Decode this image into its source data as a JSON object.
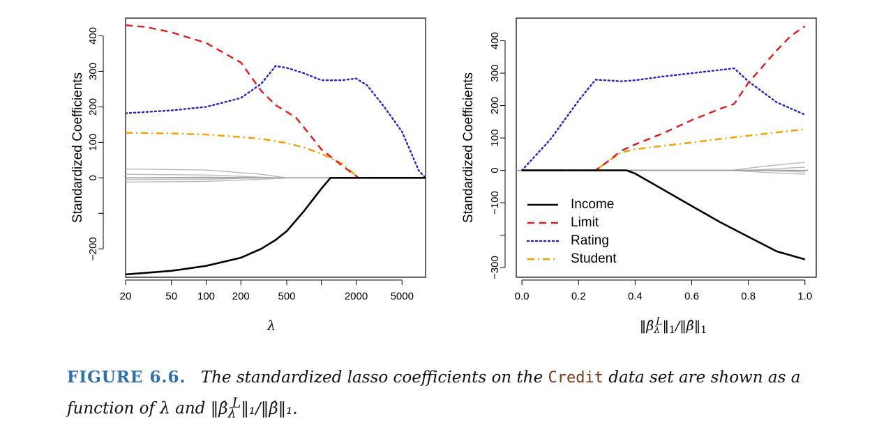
{
  "figure_caption": {
    "label": "FIGURE 6.6.",
    "part1": "The standardized lasso coefficients on the",
    "code": "Credit",
    "part2": "data set are shown as a function of",
    "math1": "λ",
    "part3": "and",
    "math2": "‖β̂",
    "math2_sub": "λ",
    "math2_sup": "L",
    "math2_rest": "‖₁/‖β̂‖₁."
  },
  "chart_data": [
    {
      "type": "line",
      "xscale": "log",
      "xlabel": "λ",
      "ylabel": "Standardized Coefficients",
      "x_ticks": [
        20,
        50,
        100,
        200,
        500,
        2000,
        5000
      ],
      "x_tick_labels": [
        "20",
        "50",
        "100",
        "200",
        "500",
        "2000",
        "5000"
      ],
      "y_ticks": [
        -200,
        -100,
        0,
        100,
        200,
        300,
        400
      ],
      "y_tick_labels": [
        "−200",
        "",
        "0",
        "100",
        "200",
        "300",
        "400"
      ],
      "xlim": [
        20,
        8000
      ],
      "ylim": [
        -280,
        450
      ],
      "series": [
        {
          "name": "Income",
          "color": "#000000",
          "dash": "solid",
          "x": [
            20,
            50,
            100,
            200,
            300,
            400,
            500,
            700,
            1000,
            1200,
            8000
          ],
          "y": [
            -272,
            -262,
            -248,
            -225,
            -200,
            -175,
            -150,
            -95,
            -30,
            0,
            0
          ]
        },
        {
          "name": "Limit",
          "color": "#e31a1c",
          "dash": "dashed",
          "x": [
            20,
            30,
            50,
            100,
            200,
            300,
            400,
            600,
            800,
            1000,
            1500,
            2100,
            8000
          ],
          "y": [
            430,
            425,
            410,
            380,
            325,
            245,
            205,
            170,
            120,
            80,
            35,
            0,
            0
          ]
        },
        {
          "name": "Rating",
          "color": "#1f1fd0",
          "dash": "dotted",
          "x": [
            20,
            50,
            100,
            200,
            300,
            400,
            500,
            700,
            1000,
            1500,
            2000,
            2500,
            3500,
            5000,
            7000,
            8000
          ],
          "y": [
            182,
            190,
            200,
            225,
            265,
            315,
            310,
            295,
            275,
            275,
            280,
            260,
            200,
            130,
            20,
            0
          ]
        },
        {
          "name": "Student",
          "color": "#f0a000",
          "dash": "dashdot",
          "x": [
            20,
            50,
            100,
            200,
            300,
            500,
            700,
            1000,
            1500,
            2100,
            8000
          ],
          "y": [
            127,
            125,
            122,
            115,
            110,
            98,
            86,
            68,
            40,
            0,
            0
          ]
        }
      ],
      "gray_series": [
        {
          "x": [
            20,
            100,
            300,
            500,
            8000
          ],
          "y": [
            25,
            22,
            10,
            0,
            0
          ]
        },
        {
          "x": [
            20,
            100,
            300,
            400,
            8000
          ],
          "y": [
            10,
            8,
            2,
            0,
            0
          ]
        },
        {
          "x": [
            20,
            100,
            300,
            8000
          ],
          "y": [
            -5,
            -4,
            0,
            0
          ]
        },
        {
          "x": [
            20,
            100,
            300,
            500,
            8000
          ],
          "y": [
            -12,
            -10,
            -4,
            0,
            0
          ]
        },
        {
          "x": [
            20,
            100,
            400,
            8000
          ],
          "y": [
            0,
            2,
            0,
            0
          ]
        }
      ]
    },
    {
      "type": "line",
      "xlabel": "‖β̂λL‖1/‖β̂‖1",
      "ylabel": "Standardized Coefficients",
      "x_ticks": [
        0.0,
        0.2,
        0.4,
        0.6,
        0.8,
        1.0
      ],
      "x_tick_labels": [
        "0.0",
        "0.2",
        "0.4",
        "0.6",
        "0.8",
        "1.0"
      ],
      "y_ticks": [
        -300,
        -200,
        -100,
        0,
        100,
        200,
        300,
        400
      ],
      "y_tick_labels": [
        "−300",
        "",
        "−100",
        "0",
        "100",
        "200",
        "300",
        "400"
      ],
      "xlim": [
        -0.02,
        1.04
      ],
      "ylim": [
        -330,
        470
      ],
      "legend": {
        "position": "bottom-left",
        "entries": [
          "Income",
          "Limit",
          "Rating",
          "Student"
        ]
      },
      "series": [
        {
          "name": "Income",
          "color": "#000000",
          "dash": "solid",
          "x": [
            0,
            0.37,
            0.4,
            0.5,
            0.6,
            0.7,
            0.8,
            0.9,
            1.0
          ],
          "y": [
            0,
            0,
            -10,
            -60,
            -110,
            -160,
            -205,
            -250,
            -275
          ]
        },
        {
          "name": "Limit",
          "color": "#e31a1c",
          "dash": "dashed",
          "x": [
            0,
            0.26,
            0.3,
            0.35,
            0.4,
            0.5,
            0.6,
            0.7,
            0.75,
            0.8,
            0.9,
            0.95,
            1.0
          ],
          "y": [
            0,
            0,
            25,
            60,
            80,
            115,
            155,
            190,
            205,
            270,
            370,
            415,
            445
          ]
        },
        {
          "name": "Rating",
          "color": "#1f1fd0",
          "dash": "dotted",
          "x": [
            0,
            0.1,
            0.2,
            0.26,
            0.3,
            0.35,
            0.4,
            0.5,
            0.6,
            0.7,
            0.75,
            0.8,
            0.9,
            1.0
          ],
          "y": [
            0,
            95,
            215,
            280,
            278,
            275,
            278,
            290,
            300,
            310,
            315,
            275,
            210,
            172
          ]
        },
        {
          "name": "Student",
          "color": "#f0a000",
          "dash": "dashdot",
          "x": [
            0,
            0.26,
            0.3,
            0.35,
            0.4,
            0.5,
            0.6,
            0.7,
            0.8,
            0.9,
            1.0
          ],
          "y": [
            0,
            0,
            25,
            55,
            65,
            76,
            86,
            97,
            107,
            117,
            127
          ]
        }
      ],
      "gray_series": [
        {
          "x": [
            0,
            0.74,
            0.85,
            1.0
          ],
          "y": [
            0,
            0,
            12,
            25
          ]
        },
        {
          "x": [
            0,
            0.8,
            1.0
          ],
          "y": [
            0,
            0,
            10
          ]
        },
        {
          "x": [
            0,
            0.85,
            1.0
          ],
          "y": [
            0,
            0,
            -5
          ]
        },
        {
          "x": [
            0,
            0.74,
            0.85,
            1.0
          ],
          "y": [
            0,
            0,
            -6,
            -12
          ]
        }
      ]
    }
  ]
}
